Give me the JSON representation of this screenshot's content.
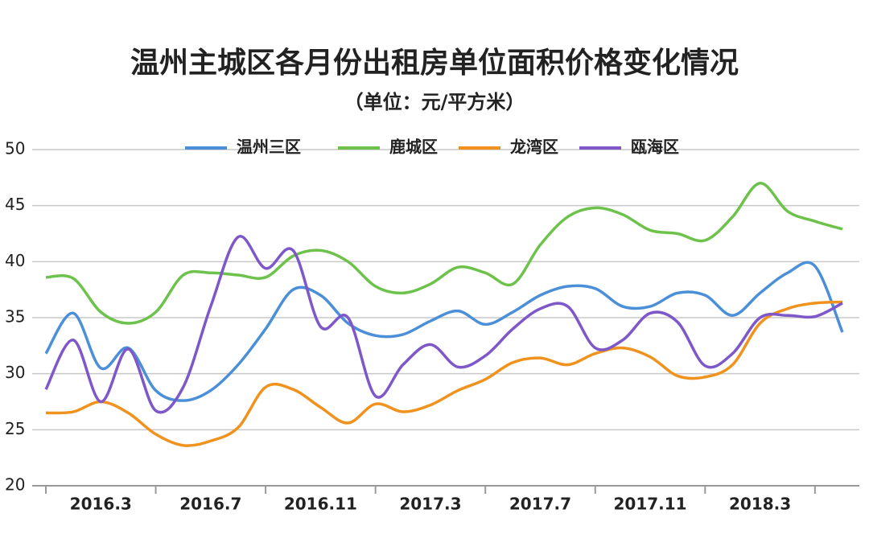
{
  "chart_data": {
    "type": "line",
    "title": "温州主城区各月份出租房单位面积价格变化情况",
    "subtitle": "（单位：元/平方米）",
    "categories": [
      null,
      null,
      "2016.3",
      null,
      null,
      null,
      "2016.7",
      null,
      null,
      null,
      "2016.11",
      null,
      null,
      null,
      "2017.3",
      null,
      null,
      null,
      "2017.7",
      null,
      null,
      null,
      "2017.11",
      null,
      null,
      null,
      "2018.3",
      null,
      null,
      null
    ],
    "series": [
      {
        "name": "温州三区",
        "color": "#4a8fd8",
        "values": [
          31.8,
          35.4,
          30.5,
          32.3,
          28.5,
          27.6,
          28.5,
          30.8,
          34,
          37.5,
          37,
          34.5,
          33.4,
          33.5,
          34.7,
          35.6,
          34.4,
          35.5,
          37,
          37.8,
          37.6,
          36,
          36,
          37.2,
          37,
          35.2,
          37.2,
          39,
          39.6,
          33.7
        ]
      },
      {
        "name": "鹿城区",
        "color": "#6dc24b",
        "values": [
          38.6,
          38.5,
          35.5,
          34.5,
          35.5,
          38.8,
          39,
          38.8,
          38.6,
          40.5,
          41,
          40,
          37.8,
          37.2,
          38,
          39.5,
          39,
          38,
          41.5,
          44,
          44.8,
          44.2,
          42.8,
          42.5,
          41.9,
          44,
          47,
          44.5,
          43.6,
          42.9
        ]
      },
      {
        "name": "龙湾区",
        "color": "#f0921e",
        "values": [
          26.5,
          26.6,
          27.5,
          26.5,
          24.6,
          23.6,
          24,
          25.2,
          28.8,
          28.6,
          27,
          25.6,
          27.3,
          26.6,
          27.2,
          28.5,
          29.5,
          31,
          31.4,
          30.8,
          31.8,
          32.3,
          31.5,
          29.8,
          29.7,
          30.8,
          34.5,
          35.8,
          36.3,
          36.4
        ]
      },
      {
        "name": "瓯海区",
        "color": "#7e57c9",
        "values": [
          28.6,
          33,
          27.5,
          32.2,
          26.7,
          28.8,
          36,
          42.2,
          39.4,
          41,
          34.2,
          35,
          28,
          30.8,
          32.6,
          30.6,
          31.6,
          34,
          35.8,
          36,
          32.3,
          33,
          35.4,
          34.6,
          30.7,
          31.8,
          35,
          35.2,
          35.1,
          36.3
        ]
      }
    ],
    "ylim": [
      20,
      50
    ],
    "yticks": [
      20,
      25,
      30,
      35,
      40,
      45,
      50
    ],
    "grid": true,
    "legend": "top"
  }
}
